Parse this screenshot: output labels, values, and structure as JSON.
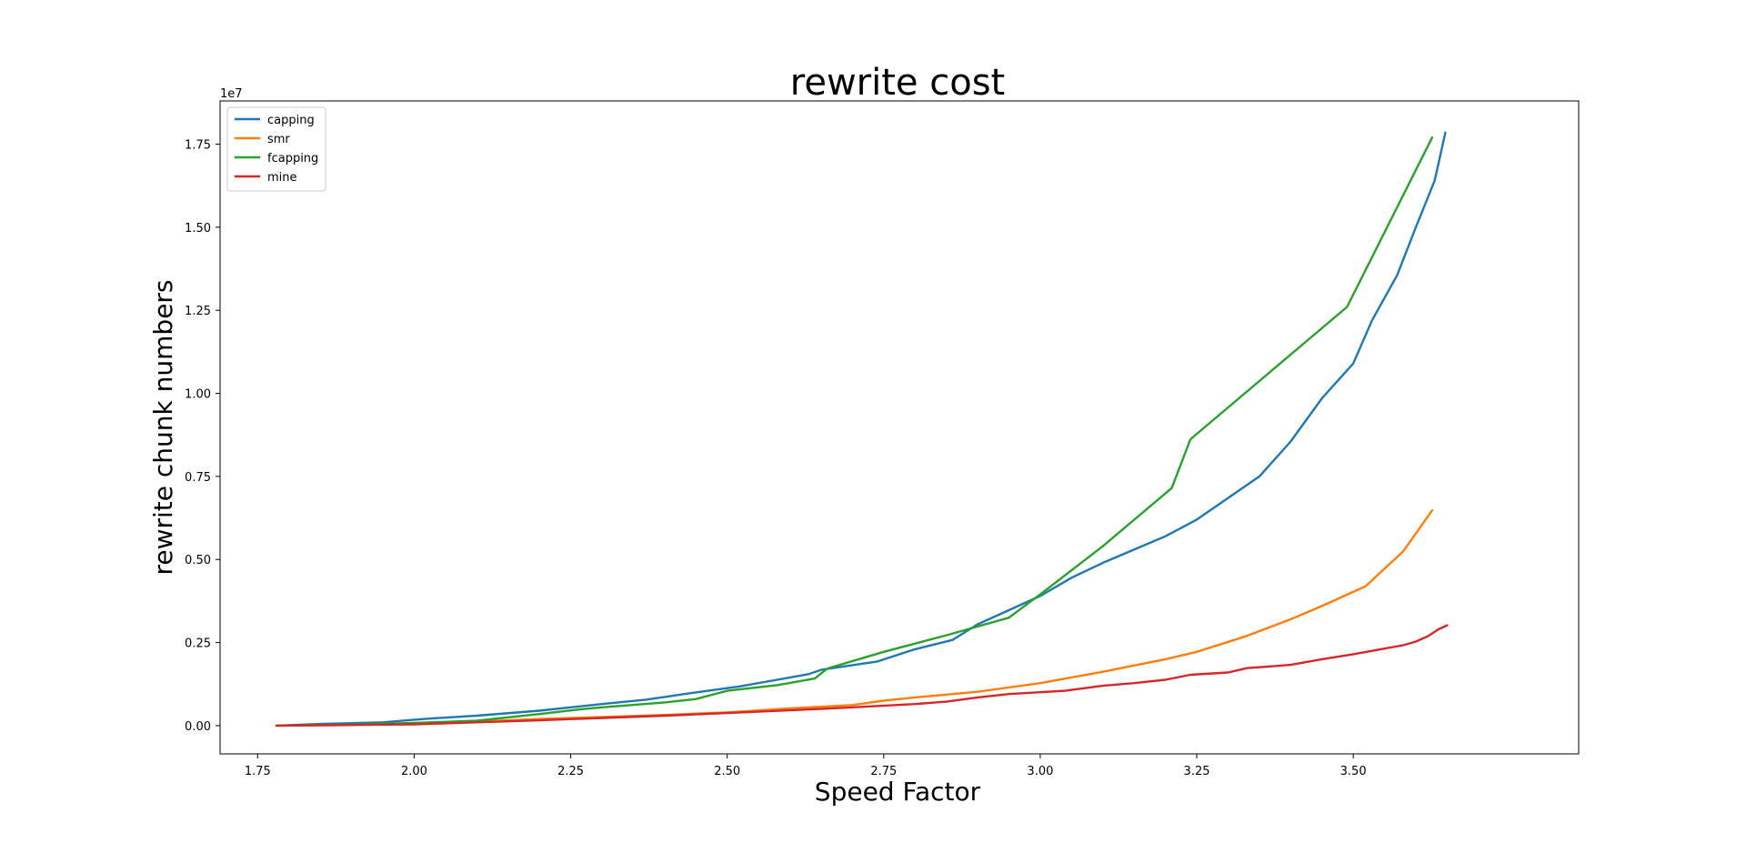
{
  "chart_data": {
    "type": "line",
    "title": "rewrite cost",
    "xlabel": "Speed Factor",
    "ylabel": "rewrite chunk numbers",
    "y_offset_text": "1e7",
    "xlim": [
      1.69,
      3.86
    ],
    "ylim": [
      -0.085,
      1.88
    ],
    "y_scale_note": "y values in units of 1e7",
    "grid": false,
    "legend_position": "top-left",
    "x_ticks": [
      1.75,
      2.0,
      2.25,
      2.5,
      2.75,
      3.0,
      3.25,
      3.5
    ],
    "x_tick_labels": [
      "1.75",
      "2.00",
      "2.25",
      "2.50",
      "2.75",
      "3.00",
      "3.25",
      "3.50"
    ],
    "y_ticks": [
      0.0,
      0.25,
      0.5,
      0.75,
      1.0,
      1.25,
      1.5,
      1.75
    ],
    "y_tick_labels": [
      "0.00",
      "0.25",
      "0.50",
      "0.75",
      "1.00",
      "1.25",
      "1.50",
      "1.75"
    ],
    "series": [
      {
        "name": "capping",
        "color": "#1f77b4",
        "points": [
          [
            1.78,
            0.0
          ],
          [
            1.85,
            0.005
          ],
          [
            1.95,
            0.01
          ],
          [
            2.0,
            0.018
          ],
          [
            2.03,
            0.022
          ],
          [
            2.1,
            0.03
          ],
          [
            2.2,
            0.045
          ],
          [
            2.3,
            0.065
          ],
          [
            2.37,
            0.078
          ],
          [
            2.45,
            0.1
          ],
          [
            2.52,
            0.118
          ],
          [
            2.58,
            0.138
          ],
          [
            2.63,
            0.155
          ],
          [
            2.65,
            0.168
          ],
          [
            2.7,
            0.182
          ],
          [
            2.74,
            0.193
          ],
          [
            2.8,
            0.23
          ],
          [
            2.86,
            0.258
          ],
          [
            2.9,
            0.305
          ],
          [
            3.0,
            0.39
          ],
          [
            3.05,
            0.445
          ],
          [
            3.1,
            0.49
          ],
          [
            3.2,
            0.57
          ],
          [
            3.25,
            0.62
          ],
          [
            3.35,
            0.75
          ],
          [
            3.4,
            0.855
          ],
          [
            3.45,
            0.985
          ],
          [
            3.5,
            1.09
          ],
          [
            3.53,
            1.22
          ],
          [
            3.57,
            1.355
          ],
          [
            3.6,
            1.5
          ],
          [
            3.63,
            1.64
          ],
          [
            3.647,
            1.785
          ]
        ]
      },
      {
        "name": "smr",
        "color": "#ff7f0e",
        "points": [
          [
            1.78,
            0.0
          ],
          [
            1.9,
            0.002
          ],
          [
            2.0,
            0.006
          ],
          [
            2.1,
            0.012
          ],
          [
            2.2,
            0.02
          ],
          [
            2.3,
            0.026
          ],
          [
            2.4,
            0.032
          ],
          [
            2.5,
            0.04
          ],
          [
            2.6,
            0.052
          ],
          [
            2.7,
            0.062
          ],
          [
            2.75,
            0.075
          ],
          [
            2.8,
            0.085
          ],
          [
            2.9,
            0.102
          ],
          [
            3.0,
            0.128
          ],
          [
            3.1,
            0.162
          ],
          [
            3.2,
            0.2
          ],
          [
            3.25,
            0.222
          ],
          [
            3.33,
            0.27
          ],
          [
            3.4,
            0.32
          ],
          [
            3.45,
            0.36
          ],
          [
            3.52,
            0.42
          ],
          [
            3.58,
            0.525
          ],
          [
            3.626,
            0.648
          ]
        ]
      },
      {
        "name": "fcapping",
        "color": "#2ca02c",
        "points": [
          [
            1.78,
            0.0
          ],
          [
            1.9,
            0.003
          ],
          [
            2.0,
            0.008
          ],
          [
            2.1,
            0.015
          ],
          [
            2.2,
            0.035
          ],
          [
            2.26,
            0.048
          ],
          [
            2.3,
            0.055
          ],
          [
            2.4,
            0.07
          ],
          [
            2.45,
            0.08
          ],
          [
            2.5,
            0.105
          ],
          [
            2.58,
            0.122
          ],
          [
            2.64,
            0.142
          ],
          [
            2.66,
            0.172
          ],
          [
            2.75,
            0.222
          ],
          [
            2.85,
            0.272
          ],
          [
            2.95,
            0.325
          ],
          [
            3.0,
            0.395
          ],
          [
            3.1,
            0.54
          ],
          [
            3.21,
            0.715
          ],
          [
            3.24,
            0.862
          ],
          [
            3.49,
            1.26
          ],
          [
            3.626,
            1.77
          ]
        ]
      },
      {
        "name": "mine",
        "color": "#d62728",
        "points": [
          [
            1.78,
            0.0
          ],
          [
            1.9,
            0.002
          ],
          [
            2.0,
            0.004
          ],
          [
            2.1,
            0.01
          ],
          [
            2.2,
            0.016
          ],
          [
            2.3,
            0.023
          ],
          [
            2.4,
            0.03
          ],
          [
            2.5,
            0.038
          ],
          [
            2.6,
            0.046
          ],
          [
            2.7,
            0.055
          ],
          [
            2.8,
            0.065
          ],
          [
            2.85,
            0.072
          ],
          [
            2.9,
            0.085
          ],
          [
            2.95,
            0.095
          ],
          [
            3.04,
            0.105
          ],
          [
            3.1,
            0.12
          ],
          [
            3.15,
            0.128
          ],
          [
            3.2,
            0.138
          ],
          [
            3.24,
            0.153
          ],
          [
            3.3,
            0.16
          ],
          [
            3.33,
            0.173
          ],
          [
            3.38,
            0.18
          ],
          [
            3.4,
            0.183
          ],
          [
            3.45,
            0.2
          ],
          [
            3.5,
            0.215
          ],
          [
            3.55,
            0.232
          ],
          [
            3.58,
            0.242
          ],
          [
            3.6,
            0.253
          ],
          [
            3.62,
            0.27
          ],
          [
            3.636,
            0.29
          ],
          [
            3.65,
            0.302
          ]
        ]
      }
    ]
  }
}
